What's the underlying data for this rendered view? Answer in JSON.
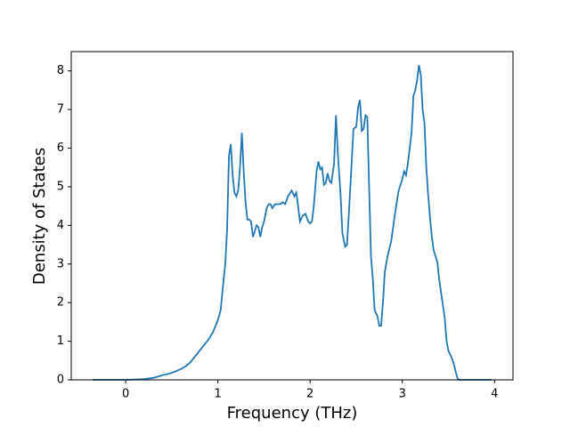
{
  "chart_data": {
    "type": "line",
    "xlabel": "Frequency (THz)",
    "ylabel": "Density of States",
    "xlim": [
      -0.59,
      4.2
    ],
    "ylim": [
      0,
      8.5
    ],
    "xticks": [
      0,
      1,
      2,
      3,
      4
    ],
    "yticks": [
      0,
      1,
      2,
      3,
      4,
      5,
      6,
      7,
      8
    ],
    "x": [
      -0.36,
      -0.2,
      0,
      0.2,
      0.3,
      0.4,
      0.5,
      0.6,
      0.65,
      0.7,
      0.8,
      0.9,
      0.95,
      1.0,
      1.03,
      1.05,
      1.08,
      1.1,
      1.12,
      1.14,
      1.16,
      1.18,
      1.2,
      1.22,
      1.24,
      1.26,
      1.28,
      1.3,
      1.32,
      1.34,
      1.36,
      1.38,
      1.4,
      1.42,
      1.44,
      1.46,
      1.48,
      1.5,
      1.53,
      1.55,
      1.57,
      1.59,
      1.62,
      1.65,
      1.68,
      1.7,
      1.73,
      1.76,
      1.8,
      1.83,
      1.85,
      1.87,
      1.89,
      1.92,
      1.95,
      1.98,
      2.0,
      2.02,
      2.04,
      2.07,
      2.09,
      2.11,
      2.13,
      2.15,
      2.17,
      2.19,
      2.21,
      2.23,
      2.26,
      2.28,
      2.3,
      2.33,
      2.35,
      2.38,
      2.4,
      2.42,
      2.45,
      2.47,
      2.5,
      2.52,
      2.54,
      2.56,
      2.58,
      2.6,
      2.62,
      2.64,
      2.66,
      2.68,
      2.7,
      2.73,
      2.75,
      2.77,
      2.79,
      2.81,
      2.84,
      2.88,
      2.92,
      2.96,
      3.0,
      3.02,
      3.04,
      3.06,
      3.08,
      3.1,
      3.12,
      3.14,
      3.16,
      3.18,
      3.2,
      3.22,
      3.24,
      3.26,
      3.28,
      3.3,
      3.32,
      3.34,
      3.36,
      3.38,
      3.4,
      3.43,
      3.46,
      3.48,
      3.5,
      3.53,
      3.56,
      3.58,
      3.6,
      3.62,
      3.8,
      3.97
    ],
    "series": [
      {
        "color": "#1f77b4",
        "values": [
          0,
          0,
          0,
          0.02,
          0.05,
          0.12,
          0.18,
          0.28,
          0.35,
          0.45,
          0.75,
          1.05,
          1.25,
          1.55,
          1.8,
          2.3,
          3.0,
          3.9,
          5.8,
          6.1,
          5.3,
          4.85,
          4.75,
          4.9,
          5.5,
          6.4,
          5.4,
          4.6,
          4.15,
          4.15,
          4.1,
          3.7,
          3.85,
          4.0,
          3.95,
          3.7,
          3.95,
          4.1,
          4.45,
          4.55,
          4.55,
          4.45,
          4.55,
          4.55,
          4.55,
          4.6,
          4.55,
          4.75,
          4.9,
          4.75,
          4.85,
          4.5,
          4.1,
          4.25,
          4.3,
          4.1,
          4.05,
          4.1,
          4.5,
          5.4,
          5.65,
          5.45,
          5.5,
          5.05,
          5.1,
          5.35,
          5.15,
          5.1,
          5.6,
          6.85,
          5.9,
          4.8,
          3.8,
          3.45,
          3.5,
          4.3,
          5.6,
          6.5,
          6.55,
          7.05,
          7.25,
          6.45,
          6.5,
          6.85,
          6.8,
          5.0,
          3.2,
          2.6,
          1.8,
          1.65,
          1.4,
          1.4,
          2.0,
          2.8,
          3.2,
          3.6,
          4.3,
          4.9,
          5.2,
          5.4,
          5.3,
          5.6,
          6.0,
          6.4,
          7.35,
          7.5,
          7.75,
          8.15,
          7.9,
          7.0,
          6.65,
          5.5,
          4.8,
          4.2,
          3.7,
          3.35,
          3.2,
          3.05,
          2.6,
          2.1,
          1.6,
          1.0,
          0.75,
          0.6,
          0.4,
          0.2,
          0.02,
          0,
          0,
          0
        ]
      }
    ]
  }
}
